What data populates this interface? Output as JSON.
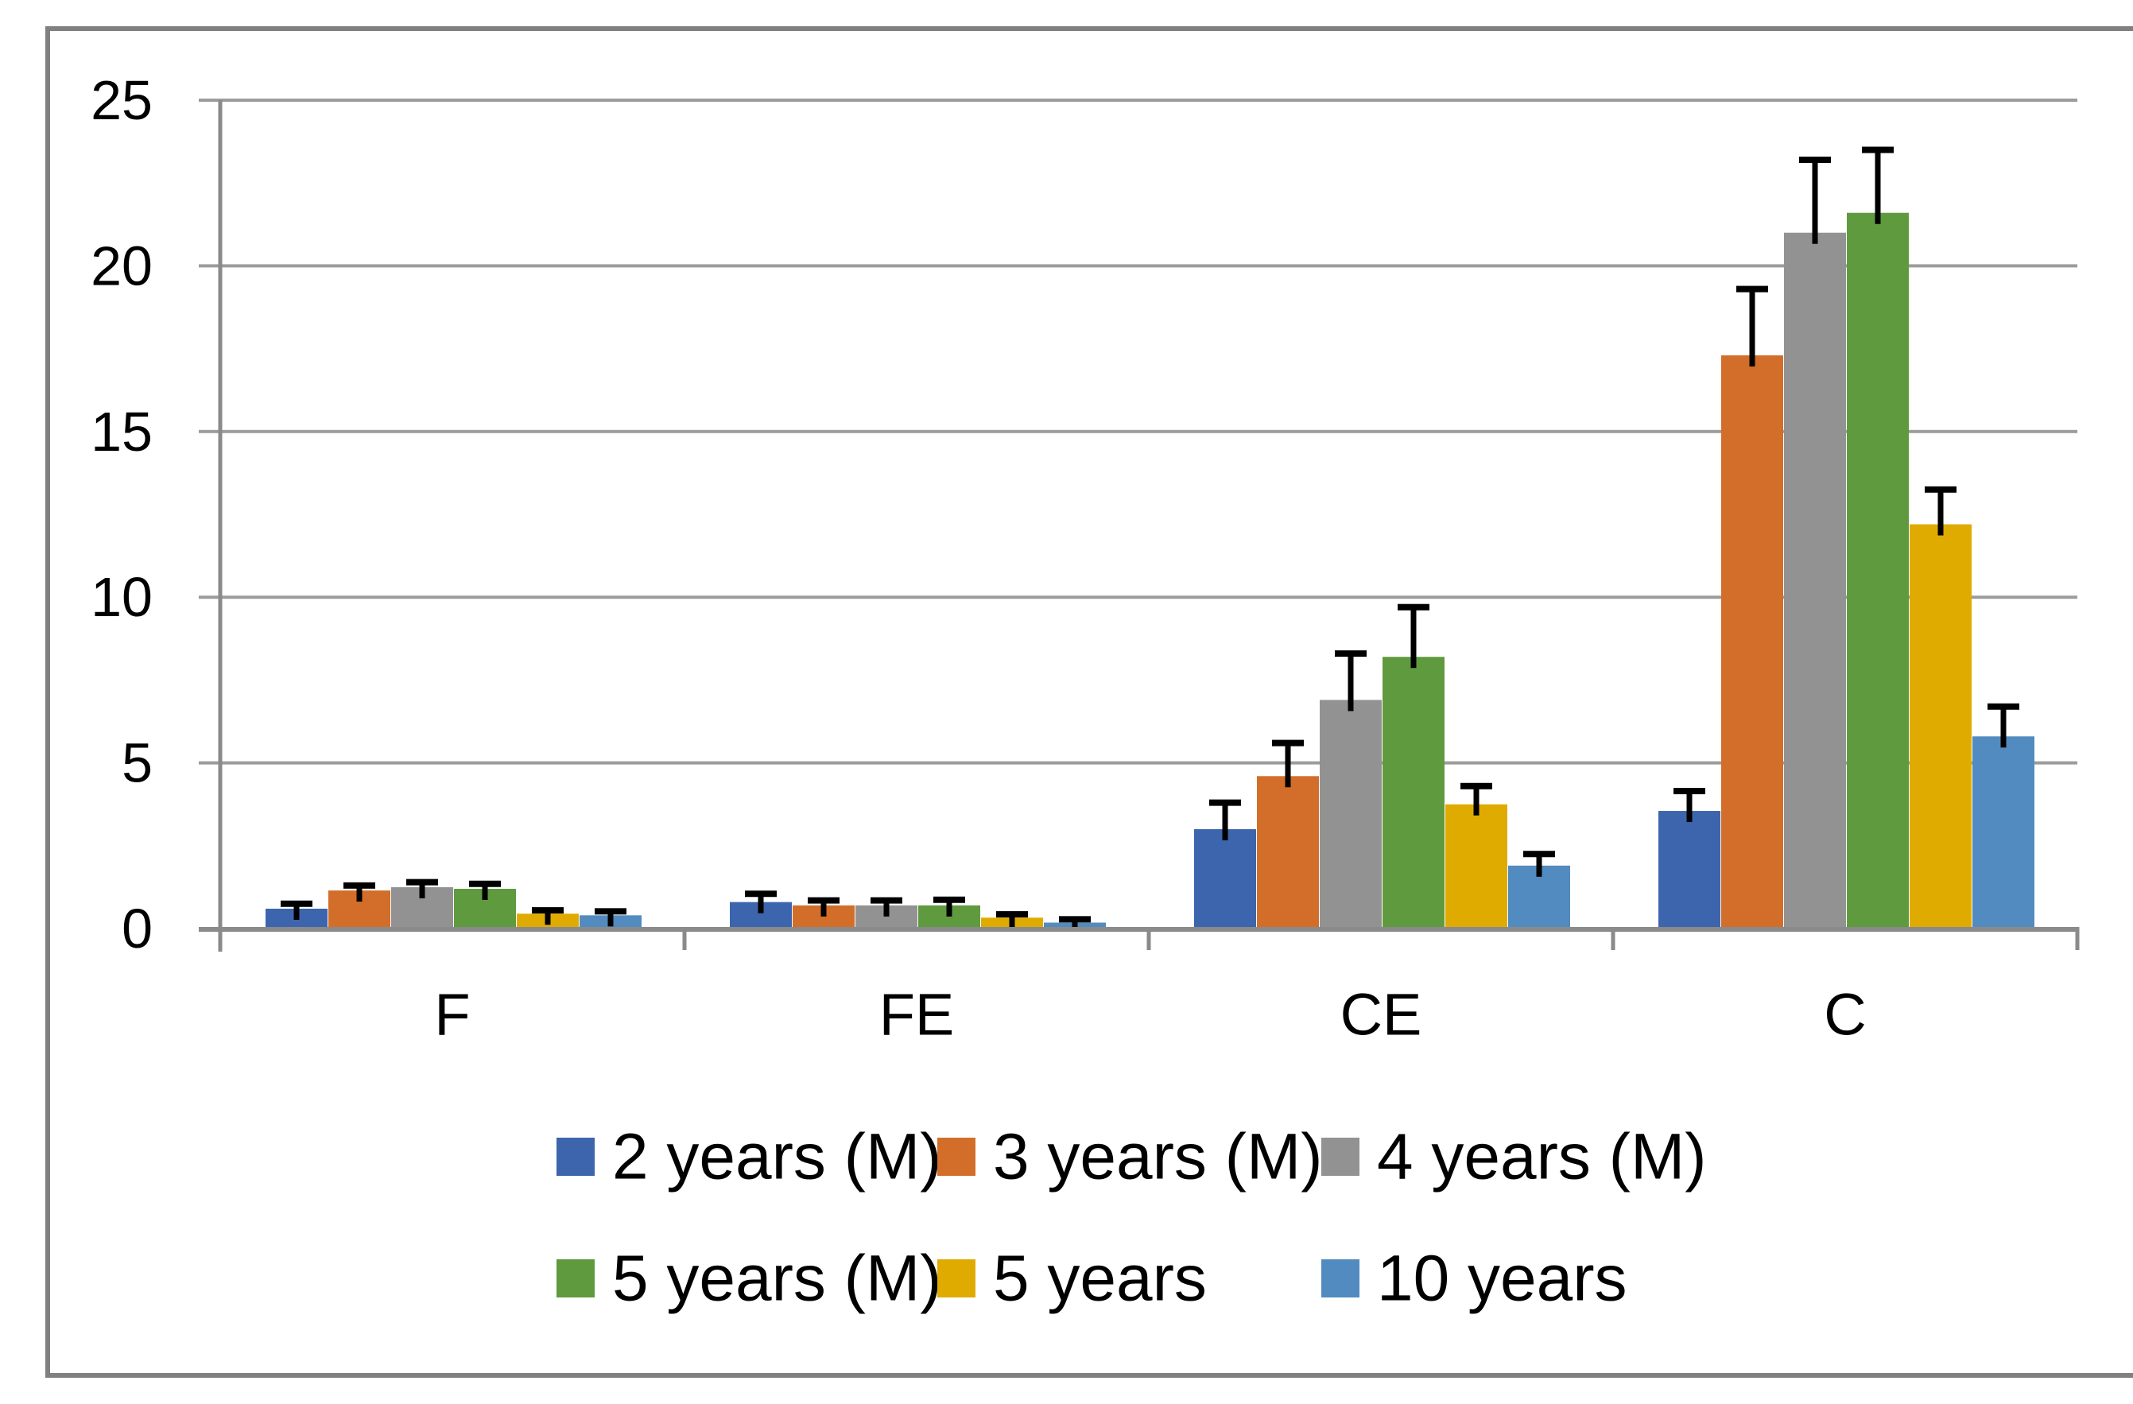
{
  "chart_data": {
    "type": "bar",
    "title": "",
    "xlabel": "",
    "ylabel": "",
    "categories": [
      "F",
      "FE",
      "CE",
      "C"
    ],
    "series": [
      {
        "name": "2 years (M)",
        "color": "#3D65AD",
        "values": [
          0.6,
          0.8,
          3.0,
          3.55
        ],
        "errors": [
          0.15,
          0.25,
          0.8,
          0.6
        ]
      },
      {
        "name": "3 years (M)",
        "color": "#D26E29",
        "values": [
          1.15,
          0.7,
          4.6,
          17.3
        ],
        "errors": [
          0.15,
          0.15,
          1.0,
          2.0
        ]
      },
      {
        "name": "4 years (M)",
        "color": "#929292",
        "values": [
          1.25,
          0.7,
          6.9,
          21.0
        ],
        "errors": [
          0.15,
          0.15,
          1.4,
          2.2
        ]
      },
      {
        "name": "5 years (M)",
        "color": "#5F9A3F",
        "values": [
          1.2,
          0.7,
          8.2,
          21.6
        ],
        "errors": [
          0.15,
          0.17,
          1.5,
          1.9
        ]
      },
      {
        "name": "5 years",
        "color": "#E0AB00",
        "values": [
          0.45,
          0.33,
          3.75,
          12.2
        ],
        "errors": [
          0.1,
          0.1,
          0.55,
          1.05
        ]
      },
      {
        "name": "10 years",
        "color": "#528BBF",
        "values": [
          0.4,
          0.18,
          1.9,
          5.8
        ],
        "errors": [
          0.12,
          0.1,
          0.35,
          0.9
        ]
      }
    ],
    "ylim": [
      0,
      25
    ],
    "yticks": [
      0,
      5,
      10,
      15,
      20,
      25
    ],
    "grid": true,
    "error_bars": true,
    "legend_position": "bottom",
    "legend_rows": [
      [
        "2 years (M)",
        "3 years (M)",
        "4 years (M)"
      ],
      [
        "5 years (M)",
        "5 years",
        "10 years"
      ]
    ],
    "colors": {
      "error_bar": "#000000",
      "axis": "#8A8A8A",
      "gridline": "#9C9C9C",
      "frame": "#808080",
      "text": "#000000",
      "background": "#FFFFFF"
    }
  }
}
